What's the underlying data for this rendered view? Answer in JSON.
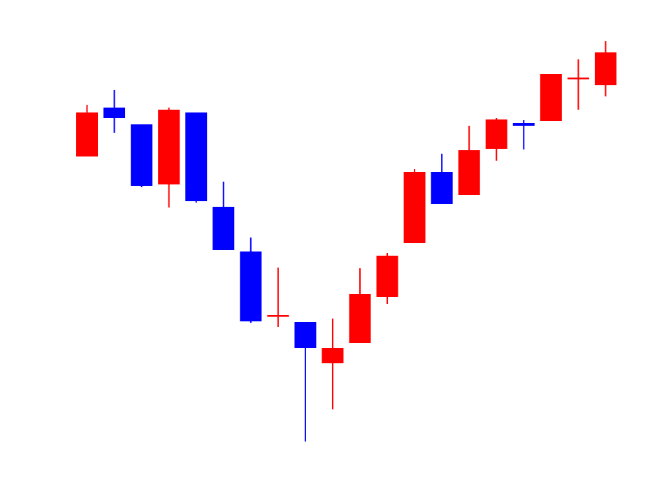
{
  "chart_data": {
    "type": "candlestick",
    "title": "",
    "xlabel": "",
    "ylabel": "",
    "axes_visible": false,
    "grid": false,
    "colors": {
      "up": "#ff0000",
      "down": "#0000ff",
      "background": "#ffffff"
    },
    "ylim": [
      0,
      720
    ],
    "candles": [
      {
        "open": 496,
        "close": 559,
        "high": 570,
        "low": 496
      },
      {
        "open": 566,
        "close": 551,
        "high": 591,
        "low": 530
      },
      {
        "open": 542,
        "close": 454,
        "high": 542,
        "low": 452
      },
      {
        "open": 456,
        "close": 563,
        "high": 566,
        "low": 423
      },
      {
        "open": 559,
        "close": 432,
        "high": 559,
        "low": 430
      },
      {
        "open": 424,
        "close": 362,
        "high": 460,
        "low": 362
      },
      {
        "open": 360,
        "close": 260,
        "high": 380,
        "low": 258
      },
      {
        "open": 268,
        "close": 269,
        "high": 337,
        "low": 252
      },
      {
        "open": 259,
        "close": 222,
        "high": 259,
        "low": 88
      },
      {
        "open": 200,
        "close": 222,
        "high": 264,
        "low": 134
      },
      {
        "open": 229,
        "close": 299,
        "high": 336,
        "low": 229
      },
      {
        "open": 295,
        "close": 354,
        "high": 358,
        "low": 285
      },
      {
        "open": 372,
        "close": 474,
        "high": 478,
        "low": 372
      },
      {
        "open": 474,
        "close": 428,
        "high": 500,
        "low": 428
      },
      {
        "open": 441,
        "close": 505,
        "high": 540,
        "low": 441
      },
      {
        "open": 507,
        "close": 549,
        "high": 551,
        "low": 490
      },
      {
        "open": 544,
        "close": 540,
        "high": 548,
        "low": 506
      },
      {
        "open": 547,
        "close": 614,
        "high": 614,
        "low": 547
      },
      {
        "open": 608,
        "close": 609,
        "high": 635,
        "low": 563
      },
      {
        "open": 598,
        "close": 645,
        "high": 661,
        "low": 582
      }
    ]
  }
}
